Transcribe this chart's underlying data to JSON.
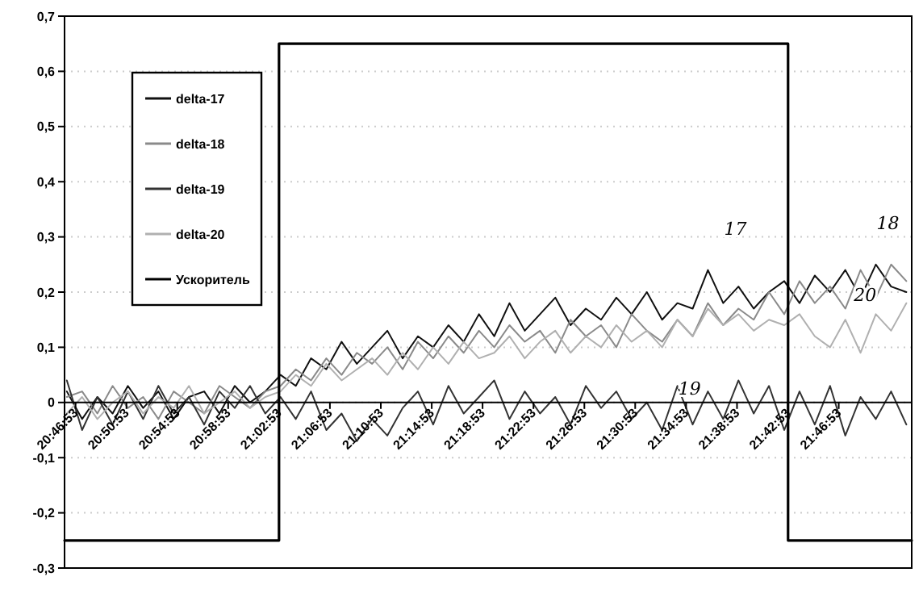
{
  "chart_data": {
    "type": "line",
    "x": [
      20.77,
      20.79,
      20.81,
      20.83,
      20.85,
      20.87,
      20.89,
      20.91,
      20.93,
      20.95,
      20.97,
      20.99,
      21.01,
      21.03,
      21.05,
      21.07,
      21.09,
      21.11,
      21.13,
      21.15,
      21.17,
      21.19,
      21.21,
      21.23,
      21.25,
      21.27,
      21.29,
      21.31,
      21.33,
      21.35,
      21.37,
      21.39,
      21.41,
      21.43,
      21.45,
      21.47,
      21.49,
      21.51,
      21.53,
      21.55,
      21.57,
      21.59,
      21.61,
      21.63,
      21.65,
      21.67,
      21.69,
      21.71,
      21.73,
      21.75,
      21.77,
      21.79,
      21.81,
      21.83,
      21.85,
      21.87
    ],
    "series": [
      {
        "name": "delta-17",
        "color": "#111111",
        "values": [
          0.02,
          -0.03,
          0.01,
          -0.02,
          0.03,
          -0.01,
          0.02,
          -0.03,
          0.01,
          0.02,
          -0.02,
          0.03,
          0.0,
          0.02,
          0.05,
          0.03,
          0.08,
          0.06,
          0.11,
          0.07,
          0.1,
          0.13,
          0.08,
          0.12,
          0.1,
          0.14,
          0.11,
          0.16,
          0.12,
          0.18,
          0.13,
          0.16,
          0.19,
          0.14,
          0.17,
          0.15,
          0.19,
          0.16,
          0.2,
          0.15,
          0.18,
          0.17,
          0.24,
          0.18,
          0.21,
          0.17,
          0.2,
          0.22,
          0.18,
          0.23,
          0.2,
          0.24,
          0.19,
          0.25,
          0.21,
          0.2
        ]
      },
      {
        "name": "delta-18",
        "color": "#8a8a8a",
        "values": [
          0.01,
          0.02,
          -0.02,
          0.03,
          -0.01,
          0.01,
          -0.03,
          0.02,
          0.0,
          -0.02,
          0.03,
          0.01,
          -0.01,
          0.02,
          0.03,
          0.06,
          0.04,
          0.08,
          0.05,
          0.09,
          0.07,
          0.1,
          0.06,
          0.11,
          0.08,
          0.12,
          0.09,
          0.13,
          0.1,
          0.14,
          0.11,
          0.13,
          0.09,
          0.15,
          0.12,
          0.14,
          0.1,
          0.16,
          0.13,
          0.11,
          0.15,
          0.12,
          0.18,
          0.14,
          0.17,
          0.15,
          0.2,
          0.16,
          0.22,
          0.18,
          0.21,
          0.17,
          0.24,
          0.19,
          0.25,
          0.22
        ]
      },
      {
        "name": "delta-19",
        "color": "#333333",
        "values": [
          0.04,
          -0.05,
          0.01,
          -0.04,
          0.02,
          -0.03,
          0.03,
          -0.02,
          0.01,
          -0.04,
          0.02,
          -0.01,
          0.03,
          -0.02,
          0.01,
          -0.03,
          0.02,
          -0.05,
          -0.02,
          -0.07,
          -0.03,
          -0.06,
          -0.01,
          0.02,
          -0.04,
          0.03,
          -0.02,
          0.01,
          0.04,
          -0.03,
          0.02,
          -0.02,
          0.01,
          -0.04,
          0.03,
          -0.01,
          0.02,
          -0.03,
          0.0,
          -0.05,
          0.03,
          -0.04,
          0.02,
          -0.03,
          0.04,
          -0.02,
          0.03,
          -0.05,
          0.02,
          -0.04,
          0.03,
          -0.06,
          0.01,
          -0.03,
          0.02,
          -0.04
        ]
      },
      {
        "name": "delta-20",
        "color": "#b0b0b0",
        "values": [
          -0.02,
          0.01,
          -0.03,
          0.0,
          0.02,
          -0.02,
          0.01,
          -0.01,
          0.03,
          -0.02,
          0.0,
          0.02,
          -0.01,
          0.01,
          0.02,
          0.05,
          0.03,
          0.07,
          0.04,
          0.06,
          0.08,
          0.05,
          0.09,
          0.06,
          0.1,
          0.07,
          0.11,
          0.08,
          0.09,
          0.12,
          0.08,
          0.11,
          0.13,
          0.09,
          0.12,
          0.1,
          0.14,
          0.11,
          0.13,
          0.1,
          0.15,
          0.12,
          0.17,
          0.14,
          0.16,
          0.13,
          0.15,
          0.14,
          0.16,
          0.12,
          0.1,
          0.15,
          0.09,
          0.16,
          0.13,
          0.18
        ]
      },
      {
        "name": "Ускоритель",
        "color": "#000000",
        "x": [
          20.767,
          21.048,
          21.048,
          21.715,
          21.715,
          21.877
        ],
        "values": [
          -0.25,
          -0.25,
          0.65,
          0.65,
          -0.25,
          -0.25
        ]
      }
    ],
    "xlim": [
      20.767,
      21.877
    ],
    "xticks": [
      {
        "value": 20.7814,
        "label": "20:46:53"
      },
      {
        "value": 20.8481,
        "label": "20:50:53"
      },
      {
        "value": 20.9147,
        "label": "20:54:53"
      },
      {
        "value": 20.9814,
        "label": "20:58:53"
      },
      {
        "value": 21.0481,
        "label": "21:02:53"
      },
      {
        "value": 21.1147,
        "label": "21:06:53"
      },
      {
        "value": 21.1814,
        "label": "21:10:53"
      },
      {
        "value": 21.2481,
        "label": "21:14:53"
      },
      {
        "value": 21.3147,
        "label": "21:18:53"
      },
      {
        "value": 21.3814,
        "label": "21:22:53"
      },
      {
        "value": 21.4481,
        "label": "21:26:53"
      },
      {
        "value": 21.5147,
        "label": "21:30:53"
      },
      {
        "value": 21.5814,
        "label": "21:34:53"
      },
      {
        "value": 21.6481,
        "label": "21:38:53"
      },
      {
        "value": 21.7147,
        "label": "21:42:53"
      },
      {
        "value": 21.7814,
        "label": "21:46:53"
      }
    ],
    "ylim": [
      -0.3,
      0.7
    ],
    "yticks": [
      {
        "value": -0.3,
        "label": "-0,3"
      },
      {
        "value": -0.2,
        "label": "-0,2"
      },
      {
        "value": -0.1,
        "label": "-0,1"
      },
      0,
      {
        "value": 0.1,
        "label": "0,1"
      },
      {
        "value": 0.2,
        "label": "0,2"
      },
      {
        "value": 0.3,
        "label": "0,3"
      },
      {
        "value": 0.4,
        "label": "0,4"
      },
      {
        "value": 0.5,
        "label": "0,5"
      },
      {
        "value": 0.6,
        "label": "0,6"
      },
      {
        "value": 0.7,
        "label": "0,7"
      }
    ],
    "grid": "y",
    "legend": "top left",
    "annotations": [
      {
        "text": "17",
        "x": 21.61,
        "y": 0.24
      },
      {
        "text": "18",
        "x": 21.81,
        "y": 0.25
      },
      {
        "text": "19",
        "x": 21.55,
        "y": -0.05
      },
      {
        "text": "20",
        "x": 21.78,
        "y": 0.12
      }
    ]
  }
}
